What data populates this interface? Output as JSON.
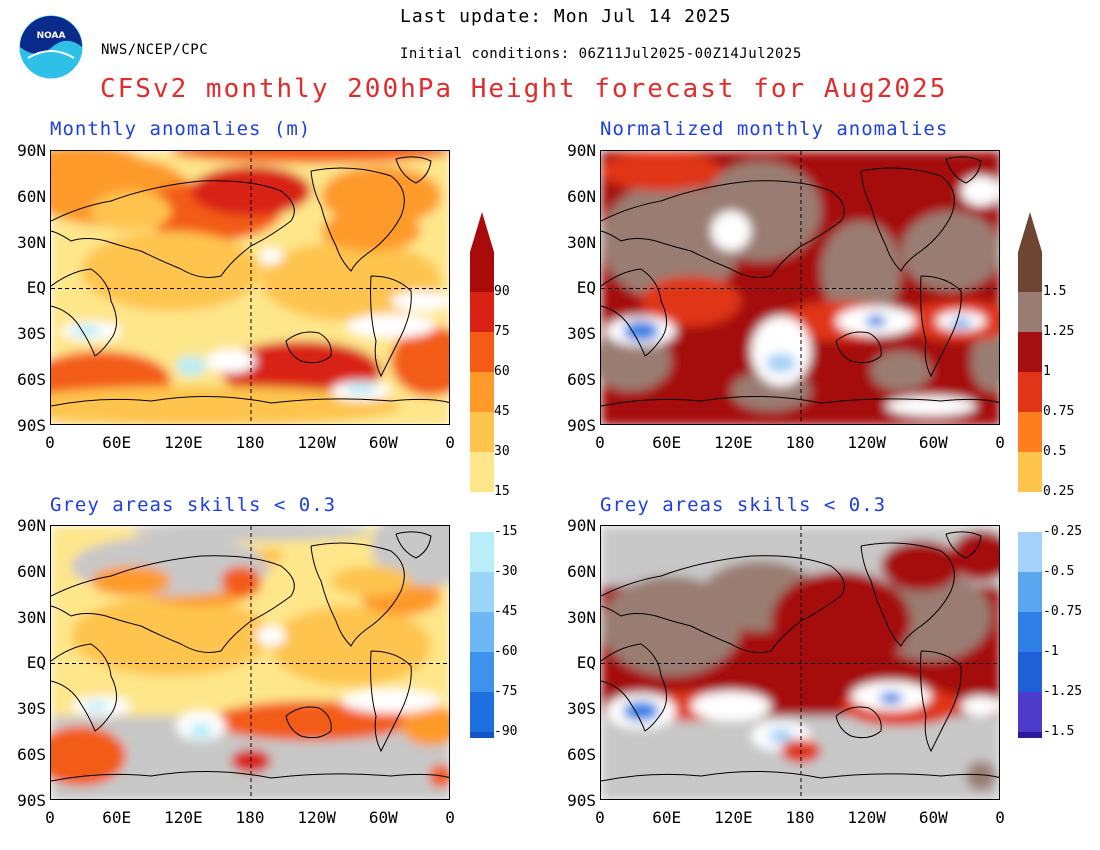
{
  "header": {
    "last_update": "Last update: Mon Jul 14 2025",
    "agency": "NWS/NCEP/CPC",
    "initial_conditions": "Initial conditions: 06Z11Jul2025-00Z14Jul2025",
    "title": "CFSv2 monthly 200hPa Height forecast for Aug2025",
    "logo_text": "NOAA"
  },
  "panels": {
    "top_left_title": "Monthly anomalies (m)",
    "top_right_title": "Normalized monthly anomalies",
    "bottom_left_title": "Grey areas skills < 0.3",
    "bottom_right_title": "Grey areas skills < 0.3"
  },
  "axes": {
    "lat_labels": [
      "90N",
      "60N",
      "30N",
      "EQ",
      "30S",
      "60S",
      "90S"
    ],
    "lon_labels": [
      "0",
      "60E",
      "120E",
      "180",
      "120W",
      "60W",
      "0"
    ]
  },
  "colorbar_left": {
    "labels": [
      "90",
      "75",
      "60",
      "45",
      "30",
      "15",
      "-15",
      "-30",
      "-45",
      "-60",
      "-75",
      "-90"
    ]
  },
  "colorbar_right": {
    "labels": [
      "1.5",
      "1.25",
      "1",
      "0.75",
      "0.5",
      "0.25",
      "-0.25",
      "-0.5",
      "-0.75",
      "-1",
      "-1.25",
      "-1.5"
    ]
  },
  "colors": {
    "left_positive": [
      "#fee68a",
      "#fec44d",
      "#fe9a2a",
      "#f35b16",
      "#d92214",
      "#a90b0b"
    ],
    "right_positive": [
      "#fec44d",
      "#fe7e1e",
      "#e03516",
      "#a50f0f",
      "#9a7d72",
      "#6e4532"
    ],
    "negative": [
      "#b9edf8",
      "#9ad4f7",
      "#6fb6f5",
      "#3f92ec",
      "#1e70e0",
      "#1454c4"
    ],
    "right_negative": [
      "#a4d2f8",
      "#5aa6ef",
      "#2f7fe6",
      "#1f5fd8",
      "#4d3ccc",
      "#2c1a9a"
    ],
    "grey_mask": "#c8c8c8",
    "title_red": "#e02c2c",
    "title_blue": "#1f3fe0"
  }
}
